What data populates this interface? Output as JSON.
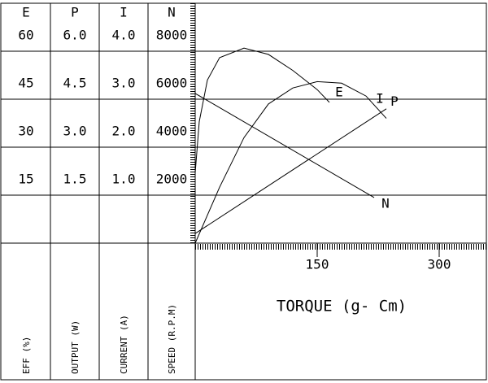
{
  "chart_data": {
    "type": "line",
    "axes": [
      {
        "label": "E",
        "title": "EFF (%)",
        "ylim": [
          0,
          75
        ],
        "yticks": [
          15,
          30,
          45,
          60
        ]
      },
      {
        "label": "P",
        "title": "OUTPUT (W)",
        "ylim": [
          0,
          7.5
        ],
        "yticks": [
          {
            "value": 1.5,
            "label": "1.5"
          },
          {
            "value": 3,
            "label": "3.0"
          },
          {
            "value": 4.5,
            "label": "4.5"
          },
          {
            "value": 6,
            "label": "6.0"
          }
        ]
      },
      {
        "label": "I",
        "title": "CURRENT (A)",
        "ylim": [
          0,
          5
        ],
        "yticks": [
          {
            "value": 1,
            "label": "1.0"
          },
          {
            "value": 2,
            "label": "2.0"
          },
          {
            "value": 3,
            "label": "3.0"
          },
          {
            "value": 4,
            "label": "4.0"
          }
        ]
      },
      {
        "label": "N",
        "title": "SPEED (R.P.M)",
        "ylim": [
          0,
          10000
        ],
        "yticks": [
          2000,
          4000,
          6000,
          8000
        ]
      }
    ],
    "x_label": "TORQUE (g- Cm)",
    "xlim": [
      0,
      358
    ],
    "xticks": [
      150,
      300
    ],
    "series": [
      {
        "name": "E",
        "axis": 0,
        "color": "#000000",
        "x": [
          0,
          5,
          15,
          30,
          60,
          90,
          120,
          150,
          165
        ],
        "values": [
          22,
          38,
          51,
          58,
          61,
          59,
          54,
          48,
          44
        ]
      },
      {
        "name": "P",
        "axis": 1,
        "color": "#000000",
        "x": [
          0,
          30,
          60,
          90,
          120,
          150,
          180,
          210,
          235
        ],
        "values": [
          0,
          1.75,
          3.3,
          4.35,
          4.85,
          5.05,
          5,
          4.6,
          3.9
        ]
      },
      {
        "name": "I",
        "axis": 2,
        "color": "#000000",
        "x": [
          0,
          235
        ],
        "values": [
          0.2,
          2.8
        ]
      },
      {
        "name": "N",
        "axis": 3,
        "color": "#000000",
        "x": [
          0,
          220
        ],
        "values": [
          6240,
          1900
        ]
      }
    ]
  }
}
